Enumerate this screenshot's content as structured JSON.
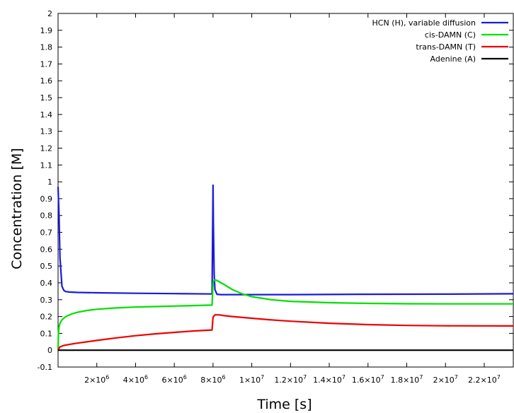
{
  "chart_data": {
    "type": "line",
    "title": "",
    "xlabel": "Time [s]",
    "ylabel": "Concentration [M]",
    "xlim": [
      0,
      23500000
    ],
    "ylim": [
      -0.1,
      2
    ],
    "grid": false,
    "legend_position": "top-right",
    "x_ticks": [
      {
        "value": 2000000,
        "mant": "2",
        "exp": "6"
      },
      {
        "value": 4000000,
        "mant": "4",
        "exp": "6"
      },
      {
        "value": 6000000,
        "mant": "6",
        "exp": "6"
      },
      {
        "value": 8000000,
        "mant": "8",
        "exp": "6"
      },
      {
        "value": 10000000,
        "mant": "1",
        "exp": "7"
      },
      {
        "value": 12000000,
        "mant": "1.2",
        "exp": "7"
      },
      {
        "value": 14000000,
        "mant": "1.4",
        "exp": "7"
      },
      {
        "value": 16000000,
        "mant": "1.6",
        "exp": "7"
      },
      {
        "value": 18000000,
        "mant": "1.8",
        "exp": "7"
      },
      {
        "value": 20000000,
        "mant": "2",
        "exp": "7"
      },
      {
        "value": 22000000,
        "mant": "2.2",
        "exp": "7"
      }
    ],
    "y_ticks": [
      "-0.1",
      "0",
      "0.1",
      "0.2",
      "0.3",
      "0.4",
      "0.5",
      "0.6",
      "0.7",
      "0.8",
      "0.9",
      "1",
      "1.1",
      "1.2",
      "1.3",
      "1.4",
      "1.5",
      "1.6",
      "1.7",
      "1.8",
      "1.9",
      "2"
    ],
    "series": [
      {
        "name": "HCN (H), variable diffusion",
        "color": "#1a1adc",
        "x": [
          0,
          50000,
          100000,
          200000,
          300000,
          400000,
          600000,
          1000000,
          2000000,
          4000000,
          6000000,
          7950000,
          8000000,
          8020000,
          8060000,
          8100000,
          8200000,
          8400000,
          9000000,
          12000000,
          16000000,
          20000000,
          23500000
        ],
        "y": [
          0.97,
          0.8,
          0.55,
          0.38,
          0.355,
          0.348,
          0.345,
          0.343,
          0.341,
          0.338,
          0.336,
          0.334,
          0.98,
          0.75,
          0.45,
          0.36,
          0.332,
          0.33,
          0.33,
          0.33,
          0.332,
          0.333,
          0.335
        ]
      },
      {
        "name": "cis-DAMN (C)",
        "color": "#00e000",
        "x": [
          0,
          20000,
          50000,
          100000,
          200000,
          400000,
          700000,
          1000000,
          1500000,
          2000000,
          3000000,
          4000000,
          5000000,
          6000000,
          7000000,
          7950000,
          8000000,
          8050000,
          8100000,
          8200000,
          8500000,
          9000000,
          9500000,
          10000000,
          11000000,
          12000000,
          14000000,
          16000000,
          18000000,
          20000000,
          23500000
        ],
        "y": [
          0.0,
          0.1,
          0.14,
          0.16,
          0.18,
          0.2,
          0.215,
          0.225,
          0.236,
          0.243,
          0.251,
          0.256,
          0.259,
          0.262,
          0.265,
          0.268,
          0.4,
          0.415,
          0.418,
          0.414,
          0.395,
          0.36,
          0.335,
          0.318,
          0.3,
          0.29,
          0.282,
          0.278,
          0.276,
          0.275,
          0.275
        ]
      },
      {
        "name": "trans-DAMN (T)",
        "color": "#ee0000",
        "x": [
          0,
          100000,
          300000,
          600000,
          1000000,
          2000000,
          3000000,
          4000000,
          5000000,
          6000000,
          7000000,
          7950000,
          8000000,
          8100000,
          8300000,
          8600000,
          9000000,
          10000000,
          11000000,
          12000000,
          14000000,
          16000000,
          18000000,
          20000000,
          23500000
        ],
        "y": [
          0.0,
          0.02,
          0.028,
          0.035,
          0.042,
          0.058,
          0.073,
          0.086,
          0.097,
          0.106,
          0.114,
          0.12,
          0.196,
          0.21,
          0.21,
          0.205,
          0.2,
          0.19,
          0.18,
          0.172,
          0.16,
          0.152,
          0.147,
          0.145,
          0.144
        ]
      },
      {
        "name": "Adenine (A)",
        "color": "#000000",
        "x": [
          0,
          23500000
        ],
        "y": [
          0,
          0
        ]
      }
    ]
  }
}
